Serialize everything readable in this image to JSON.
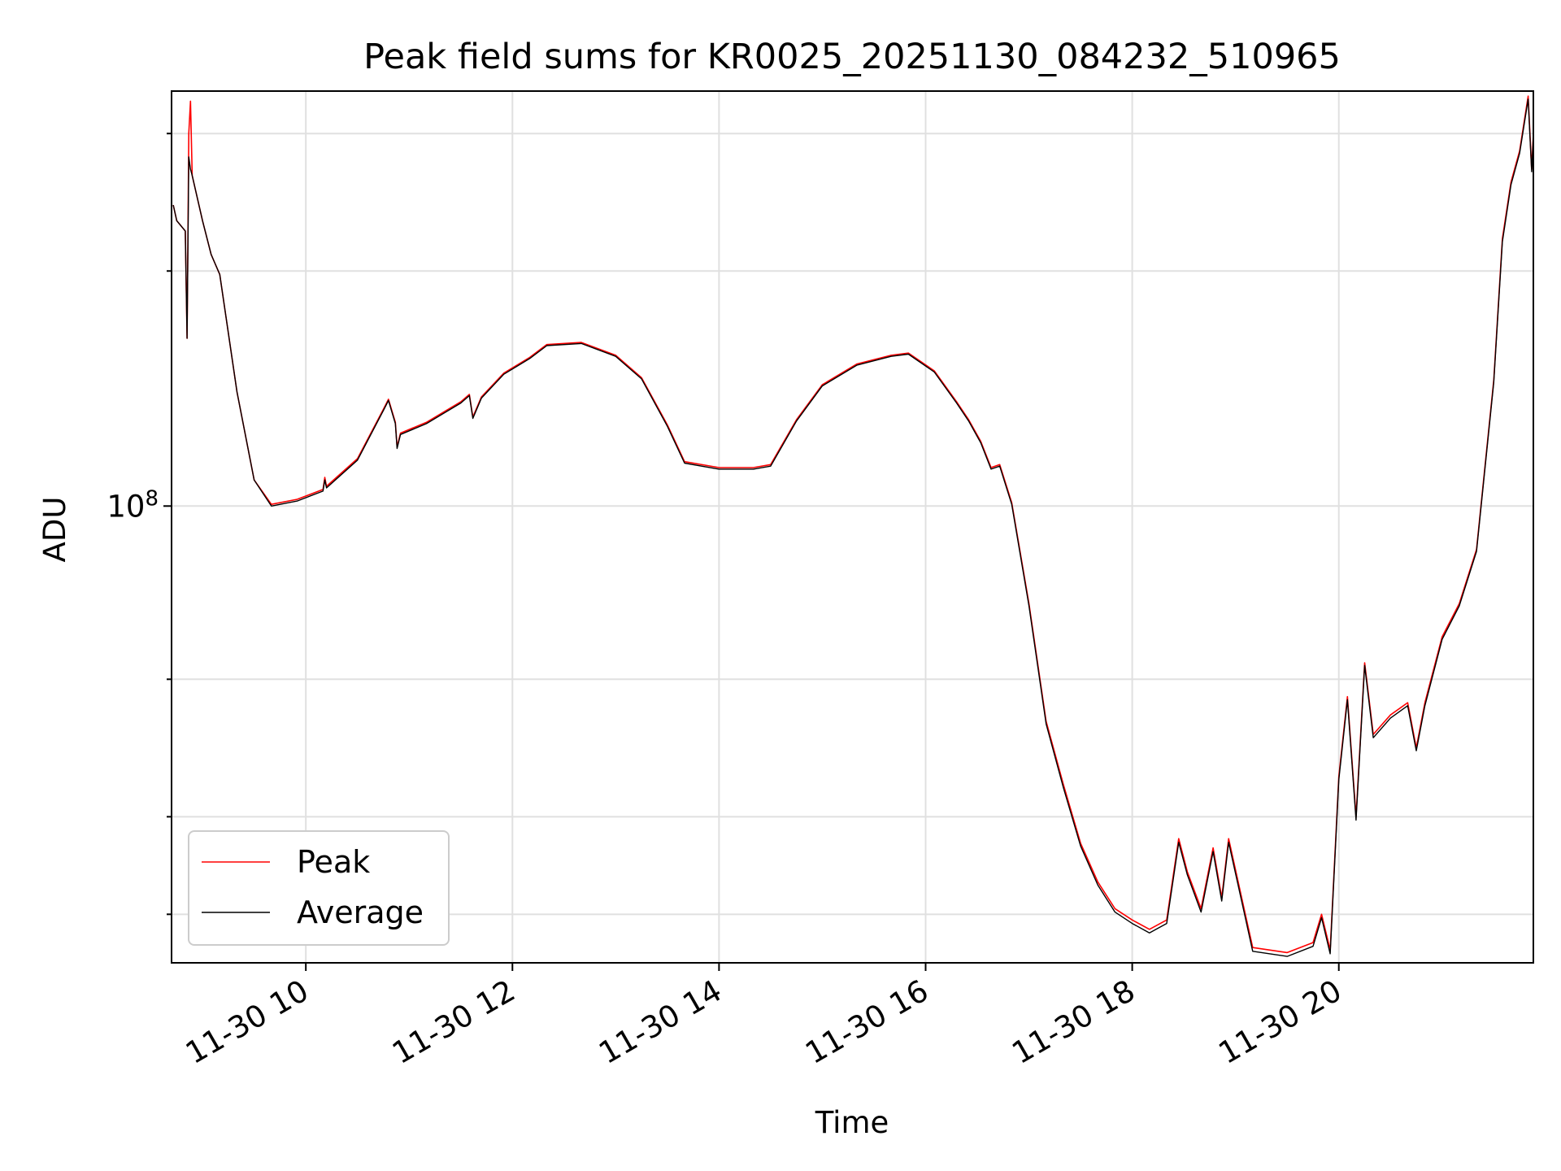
{
  "chart_data": {
    "type": "line",
    "title": "Peak field sums for KR0025_20251130_084232_510965",
    "xlabel": "Time",
    "ylabel": "ADU",
    "x_tick_labels": [
      "11-30 10",
      "11-30 12",
      "11-30 14",
      "11-30 16",
      "11-30 18",
      "11-30 20"
    ],
    "x_tick_values": [
      "2025-11-30T10:00",
      "2025-11-30T12:00",
      "2025-11-30T14:00",
      "2025-11-30T16:00",
      "2025-11-30T18:00",
      "2025-11-30T20:00"
    ],
    "y_tick_label": "10^8",
    "y_scale": "log",
    "xlim": [
      "2025-11-30T08:42",
      "2025-11-30T21:53"
    ],
    "ylim": [
      26000000,
      340000000
    ],
    "grid": true,
    "legend_position": "lower-left",
    "legend": [
      "Peak",
      "Average"
    ],
    "series": [
      {
        "name": "Peak",
        "color": "#ff0000",
        "points": [
          [
            "2025-11-30T08:43",
            243000000
          ],
          [
            "2025-11-30T08:45",
            232000000
          ],
          [
            "2025-11-30T08:50",
            225000000
          ],
          [
            "2025-11-30T08:51",
            164000000
          ],
          [
            "2025-11-30T08:52",
            300000000
          ],
          [
            "2025-11-30T08:53",
            330000000
          ],
          [
            "2025-11-30T08:54",
            265000000
          ],
          [
            "2025-11-30T09:00",
            232000000
          ],
          [
            "2025-11-30T09:05",
            210000000
          ],
          [
            "2025-11-30T09:10",
            198000000
          ],
          [
            "2025-11-30T09:20",
            140000000
          ],
          [
            "2025-11-30T09:30",
            108000000
          ],
          [
            "2025-11-30T09:40",
            100500000
          ],
          [
            "2025-11-30T09:55",
            102000000
          ],
          [
            "2025-11-30T10:10",
            105000000
          ],
          [
            "2025-11-30T10:11",
            108800000
          ],
          [
            "2025-11-30T10:12",
            106000000
          ],
          [
            "2025-11-30T10:30",
            115000000
          ],
          [
            "2025-11-30T10:45",
            133000000
          ],
          [
            "2025-11-30T10:48",
            137000000
          ],
          [
            "2025-11-30T10:52",
            128000000
          ],
          [
            "2025-11-30T10:53",
            119000000
          ],
          [
            "2025-11-30T10:55",
            124000000
          ],
          [
            "2025-11-30T11:10",
            128000000
          ],
          [
            "2025-11-30T11:30",
            136000000
          ],
          [
            "2025-11-30T11:35",
            139000000
          ],
          [
            "2025-11-30T11:37",
            130000000
          ],
          [
            "2025-11-30T11:42",
            138000000
          ],
          [
            "2025-11-30T11:55",
            148000000
          ],
          [
            "2025-11-30T12:10",
            155000000
          ],
          [
            "2025-11-30T12:20",
            161000000
          ],
          [
            "2025-11-30T12:40",
            162000000
          ],
          [
            "2025-11-30T13:00",
            156000000
          ],
          [
            "2025-11-30T13:15",
            146000000
          ],
          [
            "2025-11-30T13:30",
            127000000
          ],
          [
            "2025-11-30T13:40",
            114000000
          ],
          [
            "2025-11-30T14:00",
            112000000
          ],
          [
            "2025-11-30T14:20",
            112000000
          ],
          [
            "2025-11-30T14:30",
            113000000
          ],
          [
            "2025-11-30T14:45",
            129000000
          ],
          [
            "2025-11-30T15:00",
            143000000
          ],
          [
            "2025-11-30T15:20",
            152000000
          ],
          [
            "2025-11-30T15:40",
            156000000
          ],
          [
            "2025-11-30T15:50",
            157000000
          ],
          [
            "2025-11-30T16:05",
            149000000
          ],
          [
            "2025-11-30T16:18",
            136000000
          ],
          [
            "2025-11-30T16:25",
            129000000
          ],
          [
            "2025-11-30T16:32",
            121000000
          ],
          [
            "2025-11-30T16:38",
            112000000
          ],
          [
            "2025-11-30T16:43",
            113000000
          ],
          [
            "2025-11-30T16:50",
            101000000
          ],
          [
            "2025-11-30T17:00",
            75000000
          ],
          [
            "2025-11-30T17:10",
            53000000
          ],
          [
            "2025-11-30T17:20",
            44000000
          ],
          [
            "2025-11-30T17:30",
            37000000
          ],
          [
            "2025-11-30T17:40",
            33000000
          ],
          [
            "2025-11-30T17:50",
            30500000
          ],
          [
            "2025-11-30T18:00",
            29500000
          ],
          [
            "2025-11-30T18:10",
            28700000
          ],
          [
            "2025-11-30T18:20",
            29500000
          ],
          [
            "2025-11-30T18:27",
            37500000
          ],
          [
            "2025-11-30T18:32",
            34000000
          ],
          [
            "2025-11-30T18:40",
            30500000
          ],
          [
            "2025-11-30T18:47",
            36500000
          ],
          [
            "2025-11-30T18:52",
            31500000
          ],
          [
            "2025-11-30T18:56",
            37500000
          ],
          [
            "2025-11-30T19:05",
            30500000
          ],
          [
            "2025-11-30T19:10",
            27200000
          ],
          [
            "2025-11-30T19:30",
            26800000
          ],
          [
            "2025-11-30T19:45",
            27600000
          ],
          [
            "2025-11-30T19:50",
            30000000
          ],
          [
            "2025-11-30T19:55",
            27000000
          ],
          [
            "2025-11-30T20:00",
            45000000
          ],
          [
            "2025-11-30T20:05",
            57000000
          ],
          [
            "2025-11-30T20:10",
            40000000
          ],
          [
            "2025-11-30T20:15",
            63000000
          ],
          [
            "2025-11-30T20:20",
            51000000
          ],
          [
            "2025-11-30T20:30",
            54000000
          ],
          [
            "2025-11-30T20:40",
            56000000
          ],
          [
            "2025-11-30T20:45",
            49000000
          ],
          [
            "2025-11-30T20:50",
            56000000
          ],
          [
            "2025-11-30T21:00",
            68000000
          ],
          [
            "2025-11-30T21:10",
            75000000
          ],
          [
            "2025-11-30T21:20",
            88000000
          ],
          [
            "2025-11-30T21:30",
            145000000
          ],
          [
            "2025-11-30T21:35",
            220000000
          ],
          [
            "2025-11-30T21:40",
            260000000
          ],
          [
            "2025-11-30T21:45",
            285000000
          ],
          [
            "2025-11-30T21:50",
            335000000
          ],
          [
            "2025-11-30T21:52",
            270000000
          ],
          [
            "2025-11-30T21:53",
            300000000
          ]
        ]
      },
      {
        "name": "Average",
        "color": "#000000",
        "points": [
          [
            "2025-11-30T08:43",
            243000000
          ],
          [
            "2025-11-30T08:45",
            232000000
          ],
          [
            "2025-11-30T08:50",
            225000000
          ],
          [
            "2025-11-30T08:51",
            164000000
          ],
          [
            "2025-11-30T08:52",
            280000000
          ],
          [
            "2025-11-30T08:53",
            270000000
          ],
          [
            "2025-11-30T08:54",
            265000000
          ],
          [
            "2025-11-30T09:00",
            232000000
          ],
          [
            "2025-11-30T09:05",
            210000000
          ],
          [
            "2025-11-30T09:10",
            198000000
          ],
          [
            "2025-11-30T09:20",
            140000000
          ],
          [
            "2025-11-30T09:30",
            108000000
          ],
          [
            "2025-11-30T09:40",
            100000000
          ],
          [
            "2025-11-30T09:55",
            101500000
          ],
          [
            "2025-11-30T10:10",
            104500000
          ],
          [
            "2025-11-30T10:11",
            108000000
          ],
          [
            "2025-11-30T10:12",
            105500000
          ],
          [
            "2025-11-30T10:30",
            114500000
          ],
          [
            "2025-11-30T10:45",
            132500000
          ],
          [
            "2025-11-30T10:48",
            136500000
          ],
          [
            "2025-11-30T10:52",
            127500000
          ],
          [
            "2025-11-30T10:53",
            118500000
          ],
          [
            "2025-11-30T10:55",
            123500000
          ],
          [
            "2025-11-30T11:10",
            127500000
          ],
          [
            "2025-11-30T11:30",
            135500000
          ],
          [
            "2025-11-30T11:35",
            138500000
          ],
          [
            "2025-11-30T11:37",
            129500000
          ],
          [
            "2025-11-30T11:42",
            137500000
          ],
          [
            "2025-11-30T11:55",
            147500000
          ],
          [
            "2025-11-30T12:10",
            154500000
          ],
          [
            "2025-11-30T12:20",
            160500000
          ],
          [
            "2025-11-30T12:40",
            161500000
          ],
          [
            "2025-11-30T13:00",
            155500000
          ],
          [
            "2025-11-30T13:15",
            145500000
          ],
          [
            "2025-11-30T13:30",
            126500000
          ],
          [
            "2025-11-30T13:40",
            113500000
          ],
          [
            "2025-11-30T14:00",
            111500000
          ],
          [
            "2025-11-30T14:20",
            111500000
          ],
          [
            "2025-11-30T14:30",
            112500000
          ],
          [
            "2025-11-30T14:45",
            128500000
          ],
          [
            "2025-11-30T15:00",
            142500000
          ],
          [
            "2025-11-30T15:20",
            151500000
          ],
          [
            "2025-11-30T15:40",
            155500000
          ],
          [
            "2025-11-30T15:50",
            156500000
          ],
          [
            "2025-11-30T16:05",
            148500000
          ],
          [
            "2025-11-30T16:18",
            135500000
          ],
          [
            "2025-11-30T16:25",
            128500000
          ],
          [
            "2025-11-30T16:32",
            120500000
          ],
          [
            "2025-11-30T16:38",
            111500000
          ],
          [
            "2025-11-30T16:43",
            112500000
          ],
          [
            "2025-11-30T16:50",
            100500000
          ],
          [
            "2025-11-30T17:00",
            74500000
          ],
          [
            "2025-11-30T17:10",
            52600000
          ],
          [
            "2025-11-30T17:20",
            43600000
          ],
          [
            "2025-11-30T17:30",
            36700000
          ],
          [
            "2025-11-30T17:40",
            32700000
          ],
          [
            "2025-11-30T17:50",
            30200000
          ],
          [
            "2025-11-30T18:00",
            29200000
          ],
          [
            "2025-11-30T18:10",
            28400000
          ],
          [
            "2025-11-30T18:20",
            29200000
          ],
          [
            "2025-11-30T18:27",
            37100000
          ],
          [
            "2025-11-30T18:32",
            33700000
          ],
          [
            "2025-11-30T18:40",
            30200000
          ],
          [
            "2025-11-30T18:47",
            36100000
          ],
          [
            "2025-11-30T18:52",
            31200000
          ],
          [
            "2025-11-30T18:56",
            37100000
          ],
          [
            "2025-11-30T19:05",
            30200000
          ],
          [
            "2025-11-30T19:10",
            26900000
          ],
          [
            "2025-11-30T19:30",
            26500000
          ],
          [
            "2025-11-30T19:45",
            27300000
          ],
          [
            "2025-11-30T19:50",
            29700000
          ],
          [
            "2025-11-30T19:55",
            26700000
          ],
          [
            "2025-11-30T20:00",
            44600000
          ],
          [
            "2025-11-30T20:05",
            56500000
          ],
          [
            "2025-11-30T20:10",
            39600000
          ],
          [
            "2025-11-30T20:15",
            62500000
          ],
          [
            "2025-11-30T20:20",
            50500000
          ],
          [
            "2025-11-30T20:30",
            53500000
          ],
          [
            "2025-11-30T20:40",
            55500000
          ],
          [
            "2025-11-30T20:45",
            48600000
          ],
          [
            "2025-11-30T20:50",
            55500000
          ],
          [
            "2025-11-30T21:00",
            67500000
          ],
          [
            "2025-11-30T21:10",
            74500000
          ],
          [
            "2025-11-30T21:20",
            87500000
          ],
          [
            "2025-11-30T21:30",
            144000000
          ],
          [
            "2025-11-30T21:35",
            218000000
          ],
          [
            "2025-11-30T21:40",
            258000000
          ],
          [
            "2025-11-30T21:45",
            283000000
          ],
          [
            "2025-11-30T21:50",
            332000000
          ],
          [
            "2025-11-30T21:52",
            268000000
          ],
          [
            "2025-11-30T21:53",
            298000000
          ]
        ]
      }
    ]
  }
}
